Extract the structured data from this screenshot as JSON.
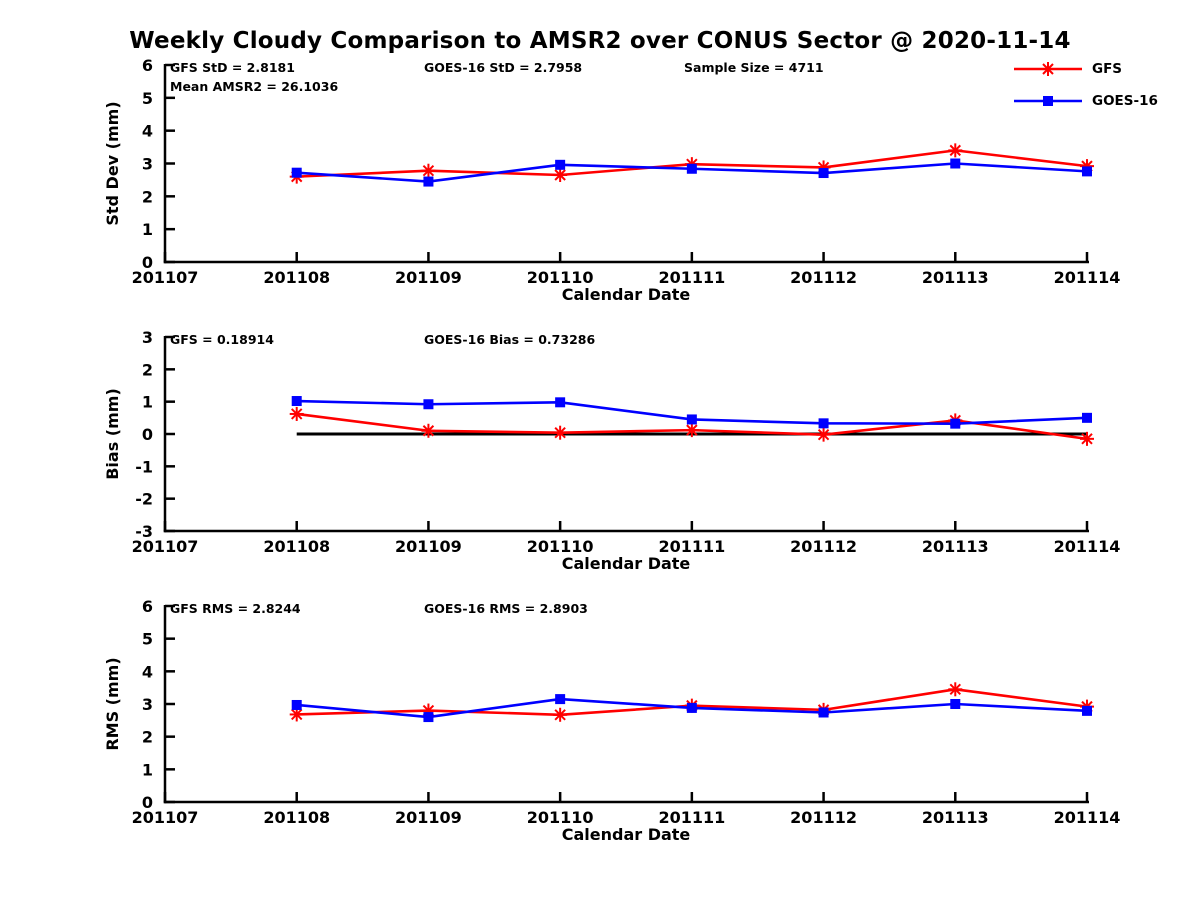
{
  "title": "Weekly Cloudy Comparison to AMSR2 over CONUS Sector @ 2020-11-14",
  "colors": {
    "gfs": "#ff0000",
    "goes16": "#0000ff",
    "axis": "#000000",
    "zero_line": "#000000",
    "background": "#ffffff"
  },
  "legend": {
    "position": "top-right",
    "items": [
      {
        "label": "GFS",
        "color_key": "gfs",
        "marker": "asterisk"
      },
      {
        "label": "GOES-16",
        "color_key": "goes16",
        "marker": "square"
      }
    ]
  },
  "chart_data": [
    {
      "type": "line",
      "ylabel": "Std Dev (mm)",
      "xlabel": "Calendar Date",
      "ylim": [
        0,
        6
      ],
      "ytick_step": 1,
      "grid": false,
      "zero_line": false,
      "x_ticks": [
        "201107",
        "201108",
        "201109",
        "201110",
        "201111",
        "201112",
        "201113",
        "201114"
      ],
      "annotations": [
        {
          "text": "GFS StD = 2.8181",
          "col": 0,
          "row": 0
        },
        {
          "text": "Mean AMSR2 = 26.1036",
          "col": 0,
          "row": 1
        },
        {
          "text": "GOES-16 StD = 2.7958",
          "col": 1,
          "row": 0
        },
        {
          "text": "Sample Size = 4711",
          "col": 2,
          "row": 0
        }
      ],
      "series": [
        {
          "name": "GFS",
          "color_key": "gfs",
          "marker": "asterisk",
          "x": [
            "201108",
            "201109",
            "201110",
            "201111",
            "201112",
            "201113",
            "201114"
          ],
          "values": [
            2.6,
            2.78,
            2.65,
            2.98,
            2.88,
            3.4,
            2.92
          ]
        },
        {
          "name": "GOES-16",
          "color_key": "goes16",
          "marker": "square",
          "x": [
            "201108",
            "201109",
            "201110",
            "201111",
            "201112",
            "201113",
            "201114"
          ],
          "values": [
            2.72,
            2.45,
            2.96,
            2.84,
            2.71,
            3.0,
            2.76
          ]
        }
      ]
    },
    {
      "type": "line",
      "ylabel": "Bias (mm)",
      "xlabel": "Calendar Date",
      "ylim": [
        -3,
        3
      ],
      "ytick_step": 1,
      "grid": false,
      "zero_line": true,
      "x_ticks": [
        "201107",
        "201108",
        "201109",
        "201110",
        "201111",
        "201112",
        "201113",
        "201114"
      ],
      "annotations": [
        {
          "text": "GFS = 0.18914",
          "col": 0,
          "row": 0
        },
        {
          "text": "GOES-16 Bias  = 0.73286",
          "col": 1,
          "row": 0
        }
      ],
      "series": [
        {
          "name": "GFS",
          "color_key": "gfs",
          "marker": "asterisk",
          "x": [
            "201108",
            "201109",
            "201110",
            "201111",
            "201112",
            "201113",
            "201114"
          ],
          "values": [
            0.62,
            0.1,
            0.04,
            0.12,
            -0.02,
            0.42,
            -0.15
          ]
        },
        {
          "name": "GOES-16",
          "color_key": "goes16",
          "marker": "square",
          "x": [
            "201108",
            "201109",
            "201110",
            "201111",
            "201112",
            "201113",
            "201114"
          ],
          "values": [
            1.02,
            0.92,
            0.98,
            0.45,
            0.33,
            0.32,
            0.5
          ]
        }
      ]
    },
    {
      "type": "line",
      "ylabel": "RMS (mm)",
      "xlabel": "Calendar Date",
      "ylim": [
        0,
        6
      ],
      "ytick_step": 1,
      "grid": false,
      "zero_line": false,
      "x_ticks": [
        "201107",
        "201108",
        "201109",
        "201110",
        "201111",
        "201112",
        "201113",
        "201114"
      ],
      "annotations": [
        {
          "text": "GFS RMS = 2.8244",
          "col": 0,
          "row": 0
        },
        {
          "text": "GOES-16 RMS = 2.8903",
          "col": 1,
          "row": 0
        }
      ],
      "series": [
        {
          "name": "GFS",
          "color_key": "gfs",
          "marker": "asterisk",
          "x": [
            "201108",
            "201109",
            "201110",
            "201111",
            "201112",
            "201113",
            "201114"
          ],
          "values": [
            2.68,
            2.8,
            2.67,
            2.95,
            2.82,
            3.45,
            2.92
          ]
        },
        {
          "name": "GOES-16",
          "color_key": "goes16",
          "marker": "square",
          "x": [
            "201108",
            "201109",
            "201110",
            "201111",
            "201112",
            "201113",
            "201114"
          ],
          "values": [
            2.97,
            2.6,
            3.15,
            2.88,
            2.74,
            3.0,
            2.79
          ]
        }
      ]
    }
  ]
}
